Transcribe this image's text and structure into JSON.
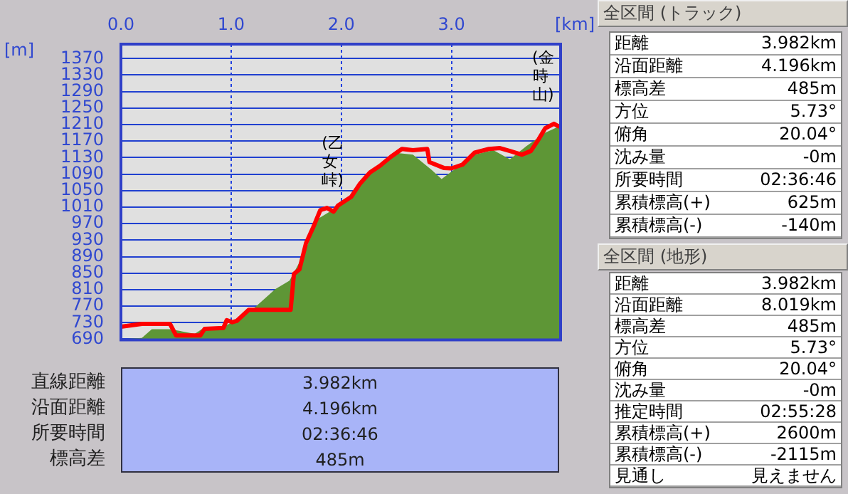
{
  "chart_data": [
    {
      "type": "line",
      "xlabel": "[km]",
      "ylabel": "[m]",
      "xlim": [
        0,
        3.99
      ],
      "xticks": [
        {
          "value": 0,
          "label": "0.0"
        },
        {
          "value": 1,
          "label": "1.0"
        },
        {
          "value": 2,
          "label": "2.0"
        },
        {
          "value": 3,
          "label": "3.0"
        }
      ],
      "ylim": [
        688,
        1405
      ],
      "yticks": [
        690,
        730,
        770,
        810,
        850,
        890,
        930,
        970,
        1010,
        1050,
        1090,
        1130,
        1170,
        1210,
        1250,
        1290,
        1330,
        1370
      ],
      "grid": true,
      "legend": false,
      "marker": "none",
      "series": [
        {
          "type": "area",
          "color": "#5e9636",
          "x": [
            0,
            0.19,
            0.28,
            0.45,
            0.67,
            0.75,
            0.93,
            1.01,
            1.22,
            1.4,
            1.53,
            1.66,
            1.79,
            1.92,
            2.09,
            2.26,
            2.48,
            2.65,
            2.82,
            2.91,
            2.99,
            3.21,
            3.38,
            3.53,
            3.68,
            3.85,
            3.98
          ],
          "values": [
            690,
            693,
            714,
            714,
            703,
            717,
            720,
            731,
            768,
            811,
            832,
            896,
            982,
            1003,
            1035,
            1094,
            1142,
            1137,
            1100,
            1078,
            1094,
            1137,
            1148,
            1126,
            1158,
            1190,
            1206
          ]
        },
        {
          "type": "line",
          "color": "#ff0000",
          "line_style": "solid",
          "x": [
            0,
            0.19,
            0.445,
            0.5,
            0.72,
            0.76,
            0.93,
            0.96,
            1.01,
            1.05,
            1.16,
            1.54,
            1.57,
            1.62,
            1.68,
            1.74,
            1.81,
            1.87,
            1.93,
            1.97,
            2.09,
            2.17,
            2.26,
            2.35,
            2.45,
            2.55,
            2.65,
            2.78,
            2.8,
            2.93,
            3,
            3.1,
            3.21,
            3.34,
            3.44,
            3.53,
            3.64,
            3.72,
            3.79,
            3.85,
            3.93,
            3.97
          ],
          "values": [
            720,
            727,
            727,
            699,
            699,
            715,
            717,
            736,
            731,
            734,
            761,
            761,
            848,
            859,
            923,
            958,
            1003,
            1008,
            999,
            1014,
            1035,
            1067,
            1094,
            1110,
            1132,
            1151,
            1148,
            1151,
            1119,
            1105,
            1104,
            1113,
            1142,
            1151,
            1153,
            1146,
            1137,
            1146,
            1174,
            1201,
            1212,
            1206
          ]
        }
      ],
      "annotations": [
        {
          "text": "(乙女峠)",
          "x": 1.9,
          "y": 1005
        },
        {
          "text": "(金時山)",
          "x": 3.93,
          "y": 1212
        }
      ]
    },
    {
      "type": "other",
      "categories": [
        "直線距離",
        "沿面距離",
        "所要時間",
        "標高差"
      ],
      "value_labels": [
        "3.982km",
        "4.196km",
        "02:36:46",
        "485m"
      ]
    },
    {
      "type": "other",
      "title": "全区間 (トラック)",
      "categories": [
        "距離",
        "沿面距離",
        "標高差",
        "方位",
        "俯角",
        "沈み量",
        "所要時間",
        "累積標高(+)",
        "累積標高(-)"
      ],
      "value_labels": [
        "3.982km",
        "4.196km",
        "485m",
        "5.73°",
        "20.04°",
        "-0m",
        "02:36:46",
        "625m",
        "-140m"
      ]
    },
    {
      "type": "other",
      "title": "全区間 (地形)",
      "categories": [
        "距離",
        "沿面距離",
        "標高差",
        "方位",
        "俯角",
        "沈み量",
        "推定時間",
        "累積標高(+)",
        "累積標高(-)",
        "見通し"
      ],
      "value_labels": [
        "3.982km",
        "8.019km",
        "485m",
        "5.73°",
        "20.04°",
        "-0m",
        "02:55:28",
        "2600m",
        "-2115m",
        "見えません"
      ]
    }
  ]
}
